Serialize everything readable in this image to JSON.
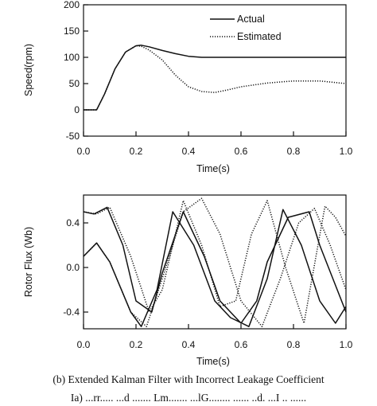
{
  "chart_data": [
    {
      "type": "line",
      "xlabel": "Time(s)",
      "ylabel": "Speed(rpm)",
      "xlim": [
        0.0,
        1.0
      ],
      "ylim": [
        -50,
        200
      ],
      "xticks": [
        "0.0",
        "0.2",
        "0.4",
        "0.6",
        "0.8",
        "1.0"
      ],
      "yticks": [
        "-50",
        "0",
        "50",
        "100",
        "150",
        "200"
      ],
      "legend_position": "top-right",
      "series": [
        {
          "name": "Actual",
          "style": "solid",
          "x": [
            0.0,
            0.05,
            0.08,
            0.12,
            0.16,
            0.2,
            0.22,
            0.25,
            0.3,
            0.35,
            0.4,
            0.45,
            0.5,
            0.6,
            0.8,
            1.0
          ],
          "y": [
            0,
            0,
            30,
            78,
            110,
            122,
            123,
            120,
            113,
            107,
            102,
            100,
            100,
            100,
            100,
            100
          ]
        },
        {
          "name": "Estimated",
          "style": "dotted",
          "x": [
            0.0,
            0.05,
            0.08,
            0.12,
            0.16,
            0.2,
            0.22,
            0.25,
            0.3,
            0.35,
            0.4,
            0.45,
            0.5,
            0.55,
            0.6,
            0.7,
            0.8,
            0.9,
            1.0
          ],
          "y": [
            0,
            0,
            30,
            78,
            110,
            122,
            121,
            114,
            95,
            66,
            44,
            35,
            33,
            38,
            44,
            51,
            55,
            55,
            50
          ]
        }
      ]
    },
    {
      "type": "line",
      "xlabel": "Time(s)",
      "ylabel": "Rotor Flux (Wb)",
      "xlim": [
        0.0,
        1.0
      ],
      "ylim": [
        -0.55,
        0.65
      ],
      "xticks": [
        "0.0",
        "0.2",
        "0.4",
        "0.6",
        "0.8",
        "1.0"
      ],
      "yticks": [
        "-0.4",
        "0.0",
        "0.4"
      ],
      "series": [
        {
          "style": "solid",
          "x": [
            0.0,
            0.04,
            0.09,
            0.15,
            0.2,
            0.26,
            0.3,
            0.38,
            0.46,
            0.52,
            0.6,
            0.66,
            0.7,
            0.78,
            0.86,
            0.9,
            0.95,
            1.0
          ],
          "y": [
            0.5,
            0.48,
            0.54,
            0.2,
            -0.3,
            -0.4,
            -0.05,
            0.5,
            0.1,
            -0.3,
            -0.5,
            -0.3,
            0.05,
            0.45,
            0.5,
            0.2,
            -0.1,
            -0.4
          ]
        },
        {
          "style": "solid",
          "x": [
            0.0,
            0.05,
            0.1,
            0.18,
            0.22,
            0.28,
            0.34,
            0.42,
            0.5,
            0.56,
            0.63,
            0.7,
            0.76,
            0.83,
            0.9,
            0.96,
            1.0
          ],
          "y": [
            0.1,
            0.22,
            0.05,
            -0.4,
            -0.53,
            -0.2,
            0.5,
            0.2,
            -0.3,
            -0.45,
            -0.53,
            -0.1,
            0.52,
            0.2,
            -0.3,
            -0.5,
            -0.35
          ]
        },
        {
          "style": "dotted",
          "x": [
            0.0,
            0.05,
            0.1,
            0.18,
            0.25,
            0.3,
            0.38,
            0.45,
            0.52,
            0.58,
            0.64,
            0.7,
            0.77,
            0.84,
            0.92,
            0.96,
            1.0
          ],
          "y": [
            0.5,
            0.48,
            0.54,
            0.1,
            -0.4,
            -0.2,
            0.6,
            0.2,
            -0.35,
            -0.3,
            0.3,
            0.6,
            0.0,
            -0.5,
            0.55,
            0.45,
            0.28
          ]
        },
        {
          "style": "dotted",
          "x": [
            0.0,
            0.05,
            0.1,
            0.18,
            0.24,
            0.3,
            0.38,
            0.45,
            0.52,
            0.6,
            0.68,
            0.75,
            0.82,
            0.88,
            0.94,
            1.0
          ],
          "y": [
            0.1,
            0.22,
            0.05,
            -0.4,
            -0.53,
            -0.1,
            0.5,
            0.62,
            0.3,
            -0.3,
            -0.53,
            -0.1,
            0.4,
            0.53,
            0.2,
            -0.2
          ]
        }
      ]
    }
  ],
  "caption": {
    "line1": "(b) Extended Kalman Filter with Incorrect Leakage Coefficient",
    "line2": "Ia) ...rr..... ...d ....... Lm....... ...lG........ ...... ..d. ...I .. ......"
  }
}
